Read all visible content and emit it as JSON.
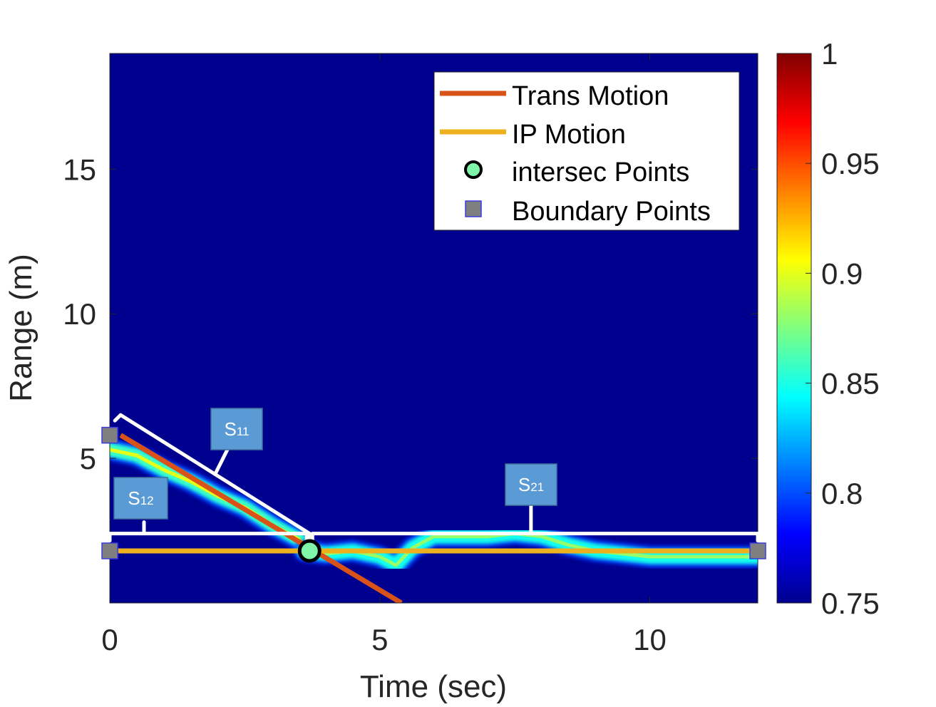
{
  "chart_data": {
    "type": "heatmap",
    "title": "",
    "xlabel": "Time (sec)",
    "ylabel": "Range (m)",
    "xlim": [
      0,
      12
    ],
    "ylim": [
      0,
      19
    ],
    "xticks": [
      0,
      5,
      10
    ],
    "xtick_labels": [
      "0",
      "5",
      "10"
    ],
    "yticks": [
      5,
      10,
      15
    ],
    "ytick_labels": [
      "5",
      "10",
      "15"
    ],
    "colormap": "jet",
    "colorbar": {
      "range": [
        0.75,
        1
      ],
      "ticks": [
        0.75,
        0.8,
        0.85,
        0.9,
        0.95,
        1
      ],
      "tick_labels": [
        "0.75",
        "0.8",
        "0.85",
        "0.9",
        "0.95",
        "1"
      ]
    },
    "background_color": "#00008f",
    "heat_ridges": [
      {
        "points": [
          [
            0,
            5.3
          ],
          [
            0.5,
            5.1
          ],
          [
            1.0,
            4.6
          ],
          [
            1.5,
            4.2
          ],
          [
            2.0,
            3.7
          ],
          [
            2.5,
            3.3
          ],
          [
            3.0,
            2.7
          ],
          [
            3.5,
            2.2
          ],
          [
            3.7,
            1.8
          ]
        ],
        "level": 0.9
      },
      {
        "points": [
          [
            3.6,
            1.8
          ],
          [
            4.0,
            1.7
          ],
          [
            4.5,
            1.8
          ],
          [
            5.0,
            1.6
          ],
          [
            5.3,
            1.3
          ],
          [
            5.6,
            1.9
          ],
          [
            6.0,
            2.3
          ],
          [
            6.5,
            2.3
          ],
          [
            7.0,
            2.3
          ],
          [
            7.5,
            2.4
          ],
          [
            8.0,
            2.3
          ],
          [
            8.5,
            2.0
          ],
          [
            9.0,
            1.8
          ],
          [
            9.5,
            1.7
          ],
          [
            10.0,
            1.6
          ],
          [
            10.5,
            1.6
          ],
          [
            11.0,
            1.6
          ],
          [
            11.5,
            1.6
          ],
          [
            12.0,
            1.6
          ]
        ],
        "level": 0.88
      }
    ],
    "series": [
      {
        "name": "Trans Motion",
        "kind": "line",
        "color": "#d95319",
        "x": [
          0.2,
          5.4
        ],
        "y": [
          5.8,
          0
        ]
      },
      {
        "name": "IP Motion",
        "kind": "line",
        "color": "#edb120",
        "x": [
          0,
          12
        ],
        "y": [
          1.8,
          1.8
        ]
      },
      {
        "name": "intersec Points",
        "kind": "marker",
        "marker": "circle",
        "color": "#7ef5a8",
        "x": [
          3.7
        ],
        "y": [
          1.8
        ]
      },
      {
        "name": "Boundary Points",
        "kind": "marker",
        "marker": "square",
        "color": "#7f7f7f",
        "x": [
          0,
          0,
          12
        ],
        "y": [
          5.8,
          1.8,
          1.8
        ]
      }
    ],
    "legend": {
      "location": "top-right",
      "entries": [
        "Trans Motion",
        "IP Motion",
        "intersec Points",
        "Boundary Points"
      ]
    },
    "annotations": [
      {
        "id": "S11",
        "text": "S",
        "sub": "11",
        "segment": [
          [
            0.2,
            6.5
          ],
          [
            3.7,
            2.4
          ]
        ]
      },
      {
        "id": "S12",
        "text": "S",
        "sub": "12",
        "segment": [
          [
            0,
            2.4
          ],
          [
            3.7,
            2.4
          ]
        ]
      },
      {
        "id": "S21",
        "text": "S",
        "sub": "21",
        "segment": [
          [
            3.7,
            2.4
          ],
          [
            12,
            2.4
          ]
        ]
      }
    ],
    "grid": false
  }
}
